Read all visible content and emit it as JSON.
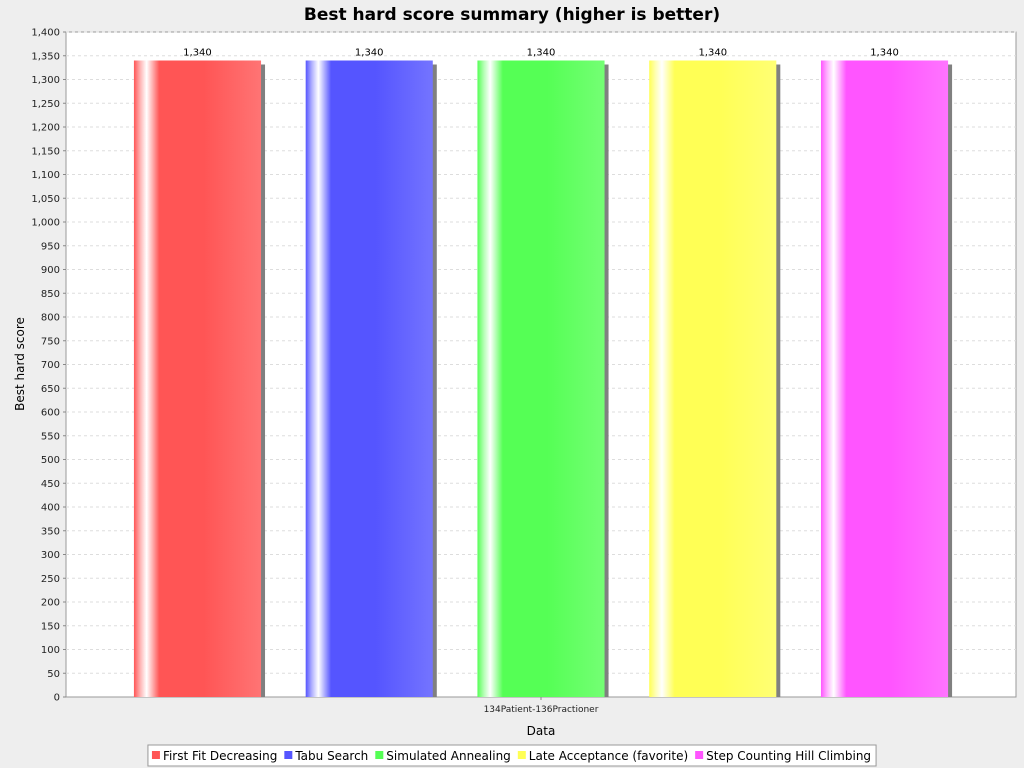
{
  "chart_data": {
    "type": "bar",
    "title": "Best hard score summary (higher is better)",
    "xlabel": "Data",
    "ylabel": "Best hard score",
    "categories": [
      "134Patient-136Practioner"
    ],
    "ylim": [
      0,
      1400
    ],
    "ytick_step": 50,
    "grid": true,
    "legend_position": "bottom",
    "series": [
      {
        "name": "First Fit Decreasing",
        "color": "#ff5555",
        "values": [
          1340
        ],
        "label": "1,340"
      },
      {
        "name": "Tabu Search",
        "color": "#5555ff",
        "values": [
          1340
        ],
        "label": "1,340"
      },
      {
        "name": "Simulated Annealing",
        "color": "#55ff55",
        "values": [
          1340
        ],
        "label": "1,340"
      },
      {
        "name": "Late Acceptance (favorite)",
        "color": "#ffff55",
        "values": [
          1340
        ],
        "label": "1,340"
      },
      {
        "name": "Step Counting Hill Climbing",
        "color": "#ff55ff",
        "values": [
          1340
        ],
        "label": "1,340"
      }
    ]
  }
}
